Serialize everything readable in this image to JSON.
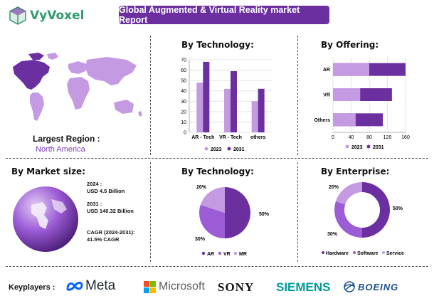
{
  "header": {
    "logo_text": "VyVoxel",
    "report_title": "Global Augmented & Virtual Reality market Report"
  },
  "region": {
    "label": "Largest Region :",
    "value": "North America"
  },
  "tech_bar": {
    "title": "By Technology:",
    "y_ticks": [
      "70",
      "60",
      "50",
      "40",
      "30",
      "20",
      "10",
      "0"
    ],
    "legend": [
      "2023",
      "2031"
    ]
  },
  "offering": {
    "title": "By Offering:",
    "x_ticks": [
      "0",
      "40",
      "80",
      "120",
      "160"
    ],
    "legend": [
      "2023",
      "2031"
    ]
  },
  "market_size": {
    "title": "By Market size:",
    "y2024_label": "2024 :",
    "y2024_value": "USD 4.5 Billion",
    "y2031_label": "2031 :",
    "y2031_value": "USD 140.32 Billion",
    "cagr_label": "CAGR (2024-2031):",
    "cagr_value": "41.5% CAGR"
  },
  "tech_pie": {
    "title": "By Technology:",
    "labels": [
      "50%",
      "30%",
      "20%"
    ],
    "legend": [
      "AR",
      "VR",
      "MR"
    ]
  },
  "enterprise": {
    "title": "By Enterprise:",
    "labels": [
      "50%",
      "30%",
      "20%"
    ],
    "legend": [
      "Hardware",
      "Software",
      "Service"
    ]
  },
  "keyplayers": {
    "label": "Keyplayers :",
    "brands": [
      "Meta",
      "Microsoft",
      "SONY",
      "SIEMENS",
      "BOEING"
    ]
  },
  "colors": {
    "primary": "#6b2fa0",
    "light": "#c49ae3",
    "mid": "#9c5cd6",
    "green": "#2e9a6e"
  },
  "chart_data": [
    {
      "type": "bar",
      "title": "By Technology:",
      "categories": [
        "AR - Tech",
        "VR - Tech",
        "others"
      ],
      "series": [
        {
          "name": "2023",
          "values": [
            48,
            42,
            30
          ]
        },
        {
          "name": "2031",
          "values": [
            68,
            59,
            42
          ]
        }
      ],
      "ylim": [
        0,
        70
      ]
    },
    {
      "type": "bar",
      "orientation": "horizontal",
      "title": "By Offering:",
      "categories": [
        "AR",
        "VR",
        "Others"
      ],
      "series": [
        {
          "name": "2023",
          "values": [
            80,
            60,
            50
          ]
        },
        {
          "name": "2031",
          "values": [
            160,
            130,
            110
          ]
        }
      ],
      "xlim": [
        0,
        160
      ]
    },
    {
      "type": "pie",
      "title": "By Technology:",
      "categories": [
        "AR",
        "VR",
        "MR"
      ],
      "values": [
        50,
        30,
        20
      ]
    },
    {
      "type": "pie",
      "donut": true,
      "title": "By Enterprise:",
      "categories": [
        "Hardware",
        "Software",
        "Service"
      ],
      "values": [
        50,
        30,
        20
      ]
    }
  ]
}
